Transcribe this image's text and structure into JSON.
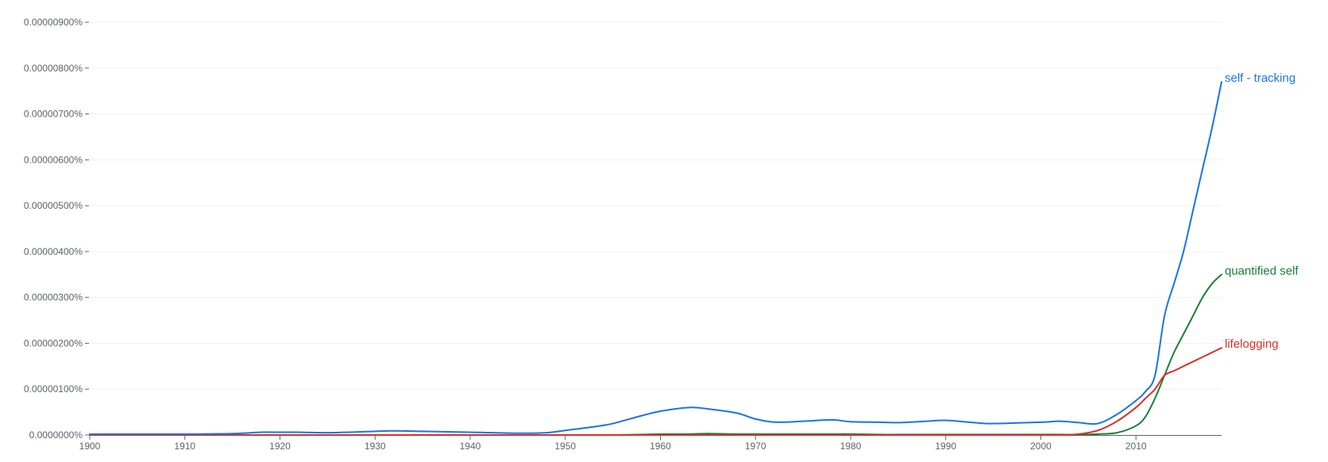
{
  "chart_data": {
    "type": "line",
    "title": "",
    "xlabel": "",
    "ylabel": "",
    "xlim": [
      1900,
      2019
    ],
    "ylim": [
      0,
      9e-06
    ],
    "grid": true,
    "legend": "end-of-line labels",
    "y_ticks": [
      "0.0000000%",
      "0.00000100%",
      "0.00000200%",
      "0.00000300%",
      "0.00000400%",
      "0.00000500%",
      "0.00000600%",
      "0.00000700%",
      "0.00000800%",
      "0.00000900%"
    ],
    "x_ticks": [
      "1900",
      "1910",
      "1920",
      "1930",
      "1940",
      "1950",
      "1960",
      "1970",
      "1980",
      "1990",
      "2000",
      "2010"
    ],
    "x": [
      1900,
      1905,
      1910,
      1915,
      1918,
      1920,
      1922,
      1925,
      1930,
      1932,
      1935,
      1940,
      1945,
      1948,
      1950,
      1953,
      1955,
      1958,
      1960,
      1963,
      1965,
      1968,
      1970,
      1972,
      1975,
      1978,
      1980,
      1983,
      1985,
      1988,
      1990,
      1993,
      1995,
      2000,
      2002,
      2004,
      2006,
      2008,
      2010,
      2011,
      2012,
      2013,
      2014,
      2015,
      2016,
      2017,
      2018,
      2019
    ],
    "series": [
      {
        "name": "self - tracking",
        "color": "#1a73e8",
        "values": [
          2e-08,
          2e-08,
          2e-08,
          3e-08,
          6e-08,
          6e-08,
          6e-08,
          5e-08,
          8e-08,
          9e-08,
          8e-08,
          6e-08,
          4e-08,
          5e-08,
          1e-07,
          1.8e-07,
          2.5e-07,
          4.2e-07,
          5.2e-07,
          6e-07,
          5.7e-07,
          4.8e-07,
          3.5e-07,
          2.8e-07,
          3e-07,
          3.3e-07,
          2.9e-07,
          2.8e-07,
          2.7e-07,
          3e-07,
          3.2e-07,
          2.7e-07,
          2.5e-07,
          2.8e-07,
          3e-07,
          2.7e-07,
          2.5e-07,
          4.5e-07,
          7.5e-07,
          9.5e-07,
          1.3e-06,
          2.6e-06,
          3.3e-06,
          4e-06,
          4.9e-06,
          5.8e-06,
          6.7e-06,
          7.7e-06
        ]
      },
      {
        "name": "quantified self",
        "color": "#188038",
        "values": [
          0,
          0,
          0,
          0,
          0,
          0,
          0,
          0,
          0,
          0,
          0,
          0,
          0,
          0,
          0,
          0,
          0,
          1e-08,
          2e-08,
          2e-08,
          3e-08,
          2e-08,
          2e-08,
          2e-08,
          2e-08,
          2e-08,
          2e-08,
          1e-08,
          1e-08,
          1e-08,
          1e-08,
          1e-08,
          1e-08,
          1e-08,
          1e-08,
          1e-08,
          2e-08,
          5e-08,
          2e-07,
          4e-07,
          8e-07,
          1.3e-06,
          1.8e-06,
          2.2e-06,
          2.6e-06,
          3e-06,
          3.3e-06,
          3.5e-06
        ]
      },
      {
        "name": "lifelogging",
        "color": "#d93025",
        "values": [
          0,
          0,
          0,
          0,
          0,
          0,
          0,
          0,
          0,
          0,
          0,
          0,
          0,
          0,
          0,
          0,
          0,
          0,
          0,
          0,
          0,
          0,
          0,
          0,
          0,
          0,
          0,
          0,
          0,
          0,
          0,
          0,
          0,
          0,
          0,
          2e-08,
          1e-07,
          3e-07,
          6e-07,
          8e-07,
          1e-06,
          1.3e-06,
          1.4e-06,
          1.5e-06,
          1.6e-06,
          1.7e-06,
          1.8e-06,
          1.9e-06
        ]
      }
    ]
  }
}
